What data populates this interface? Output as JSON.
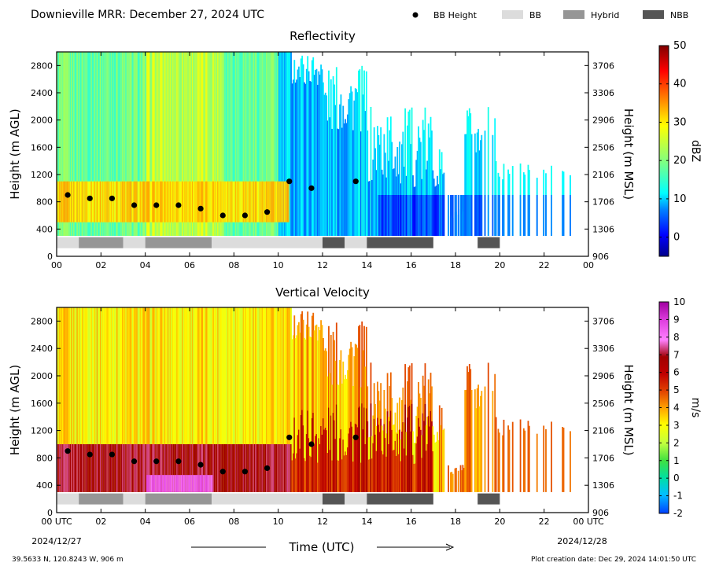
{
  "header": {
    "title": "Downieville MRR:  December 27, 2024 UTC",
    "legend": [
      {
        "label": "BB Height",
        "kind": "dot",
        "color": "#000000"
      },
      {
        "label": "BB",
        "kind": "box",
        "color": "#dcdcdc"
      },
      {
        "label": "Hybrid",
        "kind": "box",
        "color": "#969696"
      },
      {
        "label": "NBB",
        "kind": "box",
        "color": "#555555"
      }
    ]
  },
  "axes": {
    "xlabel": "Time (UTC)",
    "ylabel_left": "Height (m AGL)",
    "ylabel_right": "Height (m MSL)",
    "x_ticks": [
      "00",
      "02",
      "04",
      "06",
      "08",
      "10",
      "12",
      "14",
      "16",
      "18",
      "20",
      "22",
      "00"
    ],
    "x_ticks_bottom": [
      "00 UTC",
      "02",
      "04",
      "06",
      "08",
      "10",
      "12",
      "14",
      "16",
      "18",
      "20",
      "22",
      "00 UTC"
    ],
    "start_date": "2024/12/27",
    "end_date": "2024/12/28",
    "y_ticks_left": [
      "0",
      "400",
      "800",
      "1200",
      "1600",
      "2000",
      "2400",
      "2800"
    ],
    "y_ticks_right": [
      "906",
      "1306",
      "1706",
      "2106",
      "2506",
      "2906",
      "3306",
      "3706"
    ]
  },
  "footer": {
    "location": "39.5633 N, 120.8243 W, 906 m",
    "creation": "Plot creation date: Dec 29, 2024 14:01:50 UTC"
  },
  "chart_data": [
    {
      "type": "heatmap",
      "title": "Reflectivity",
      "xlabel": "Time (UTC)",
      "ylabel": "Height (m AGL)",
      "ylabel_right": "Height (m MSL)",
      "xlim": [
        0,
        24
      ],
      "ylim": [
        0,
        3000
      ],
      "colorbar": {
        "label": "dBZ",
        "range": [
          -5,
          50
        ],
        "ticks": [
          "50",
          "40",
          "30",
          "20",
          "10",
          "0"
        ],
        "tick_values": [
          50,
          40,
          30,
          20,
          10,
          0
        ],
        "colors": [
          "#00008b",
          "#0000ff",
          "#0080ff",
          "#00ffff",
          "#80ff80",
          "#ffff00",
          "#ff8000",
          "#ff0000",
          "#800000"
        ]
      },
      "bb_height": {
        "x": [
          0.5,
          1.5,
          2.5,
          3.5,
          4.5,
          5.5,
          6.5,
          7.5,
          8.5,
          9.5,
          10.5,
          11.5,
          13.5
        ],
        "y": [
          900,
          850,
          850,
          750,
          750,
          750,
          700,
          600,
          600,
          650,
          1100,
          1000,
          1100
        ]
      },
      "bb_type": [
        {
          "start": 0,
          "end": 1,
          "type": "BB"
        },
        {
          "start": 1,
          "end": 3,
          "type": "Hybrid"
        },
        {
          "start": 3,
          "end": 4,
          "type": "BB"
        },
        {
          "start": 4,
          "end": 7,
          "type": "Hybrid"
        },
        {
          "start": 7,
          "end": 12,
          "type": "BB"
        },
        {
          "start": 12,
          "end": 13,
          "type": "NBB"
        },
        {
          "start": 13,
          "end": 14,
          "type": "BB"
        },
        {
          "start": 14,
          "end": 17,
          "type": "NBB"
        },
        {
          "start": 19,
          "end": 20,
          "type": "NBB"
        }
      ]
    },
    {
      "type": "heatmap",
      "title": "Vertical Velocity",
      "xlabel": "Time (UTC)",
      "ylabel": "Height (m AGL)",
      "ylabel_right": "Height (m MSL)",
      "xlim": [
        0,
        24
      ],
      "ylim": [
        0,
        3000
      ],
      "colorbar": {
        "label": "m/s",
        "range": [
          -2,
          10
        ],
        "ticks": [
          "10",
          "9",
          "8",
          "7",
          "6",
          "5",
          "4",
          "3",
          "2",
          "1",
          "0",
          "-1",
          "-2"
        ],
        "tick_values": [
          10,
          9,
          8,
          7,
          6,
          5,
          4,
          3,
          2,
          1,
          0,
          -1,
          -2
        ],
        "colors": [
          "#0040ff",
          "#00c0ff",
          "#00e0a0",
          "#40e040",
          "#c0ff40",
          "#ffff00",
          "#ffa000",
          "#e04000",
          "#c00000",
          "#a00000",
          "#ff80ff",
          "#e040e0",
          "#a000a0"
        ]
      },
      "bb_height": {
        "x": [
          0.5,
          1.5,
          2.5,
          3.5,
          4.5,
          5.5,
          6.5,
          7.5,
          8.5,
          9.5,
          10.5,
          11.5,
          13.5
        ],
        "y": [
          900,
          850,
          850,
          750,
          750,
          750,
          700,
          600,
          600,
          650,
          1100,
          1000,
          1100
        ]
      },
      "bb_type": [
        {
          "start": 0,
          "end": 1,
          "type": "BB"
        },
        {
          "start": 1,
          "end": 3,
          "type": "Hybrid"
        },
        {
          "start": 3,
          "end": 4,
          "type": "BB"
        },
        {
          "start": 4,
          "end": 7,
          "type": "Hybrid"
        },
        {
          "start": 7,
          "end": 12,
          "type": "BB"
        },
        {
          "start": 12,
          "end": 13,
          "type": "NBB"
        },
        {
          "start": 13,
          "end": 14,
          "type": "BB"
        },
        {
          "start": 14,
          "end": 17,
          "type": "NBB"
        },
        {
          "start": 19,
          "end": 20,
          "type": "NBB"
        }
      ]
    }
  ]
}
